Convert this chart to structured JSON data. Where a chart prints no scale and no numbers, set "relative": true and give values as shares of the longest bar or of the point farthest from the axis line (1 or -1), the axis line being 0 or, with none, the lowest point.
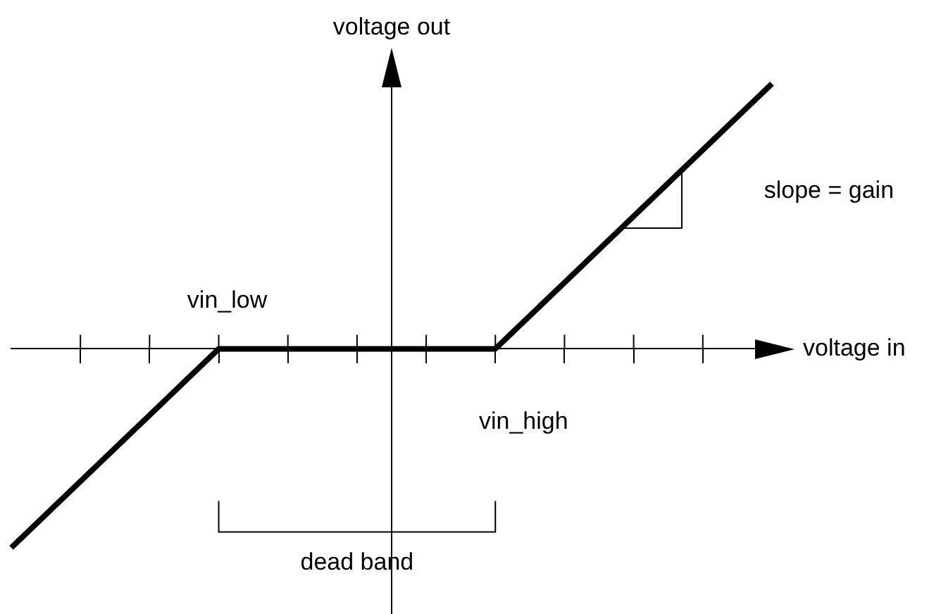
{
  "chart_data": {
    "type": "line",
    "relative": true,
    "xlabel": "voltage in",
    "ylabel": "voltage out",
    "categories": [
      null,
      null,
      null,
      null,
      null,
      null,
      null,
      null,
      null,
      null,
      null,
      null
    ],
    "series": [
      {
        "color": "#000000",
        "values": [
          -0.75,
          -0.5,
          -0.25,
          0,
          0,
          0,
          0,
          0,
          0.25,
          0.5,
          0.75,
          1
        ]
      }
    ],
    "annotations": [
      "vin_low",
      "vin_high",
      "slope = gain",
      "dead band"
    ],
    "grid": false,
    "legend": false,
    "marker": "none",
    "line_style": "solid"
  }
}
